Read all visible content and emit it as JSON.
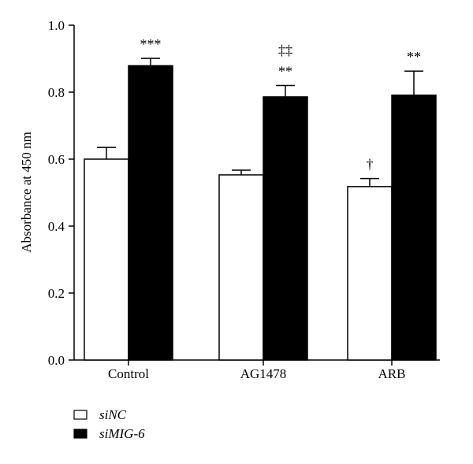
{
  "chart_data": {
    "type": "bar",
    "title": "",
    "xlabel": "",
    "ylabel": "Absorbance at 450 nm",
    "ylim": [
      0,
      1.0
    ],
    "yticks": [
      0.0,
      0.2,
      0.4,
      0.6,
      0.8,
      1.0
    ],
    "ytick_labels": [
      "0.0",
      "0.2",
      "0.4",
      "0.6",
      "0.8",
      "1.0"
    ],
    "categories": [
      "Control",
      "AG1478",
      "ARB"
    ],
    "grid": false,
    "legend_position": "bottom-left",
    "series": [
      {
        "name": "siNC",
        "color": "#ffffff",
        "values": [
          0.6,
          0.553,
          0.518
        ],
        "errors": [
          0.035,
          0.014,
          0.024
        ]
      },
      {
        "name": "siMIG-6",
        "color": "#000000",
        "values": [
          0.879,
          0.786,
          0.791
        ],
        "errors": [
          0.022,
          0.034,
          0.072
        ]
      }
    ],
    "annotations": [
      {
        "category": 0,
        "series": 1,
        "lines": [
          "***"
        ]
      },
      {
        "category": 1,
        "series": 1,
        "lines": [
          "‡‡",
          "**"
        ]
      },
      {
        "category": 2,
        "series": 0,
        "lines": [
          "†"
        ]
      },
      {
        "category": 2,
        "series": 1,
        "lines": [
          "**"
        ]
      }
    ]
  }
}
